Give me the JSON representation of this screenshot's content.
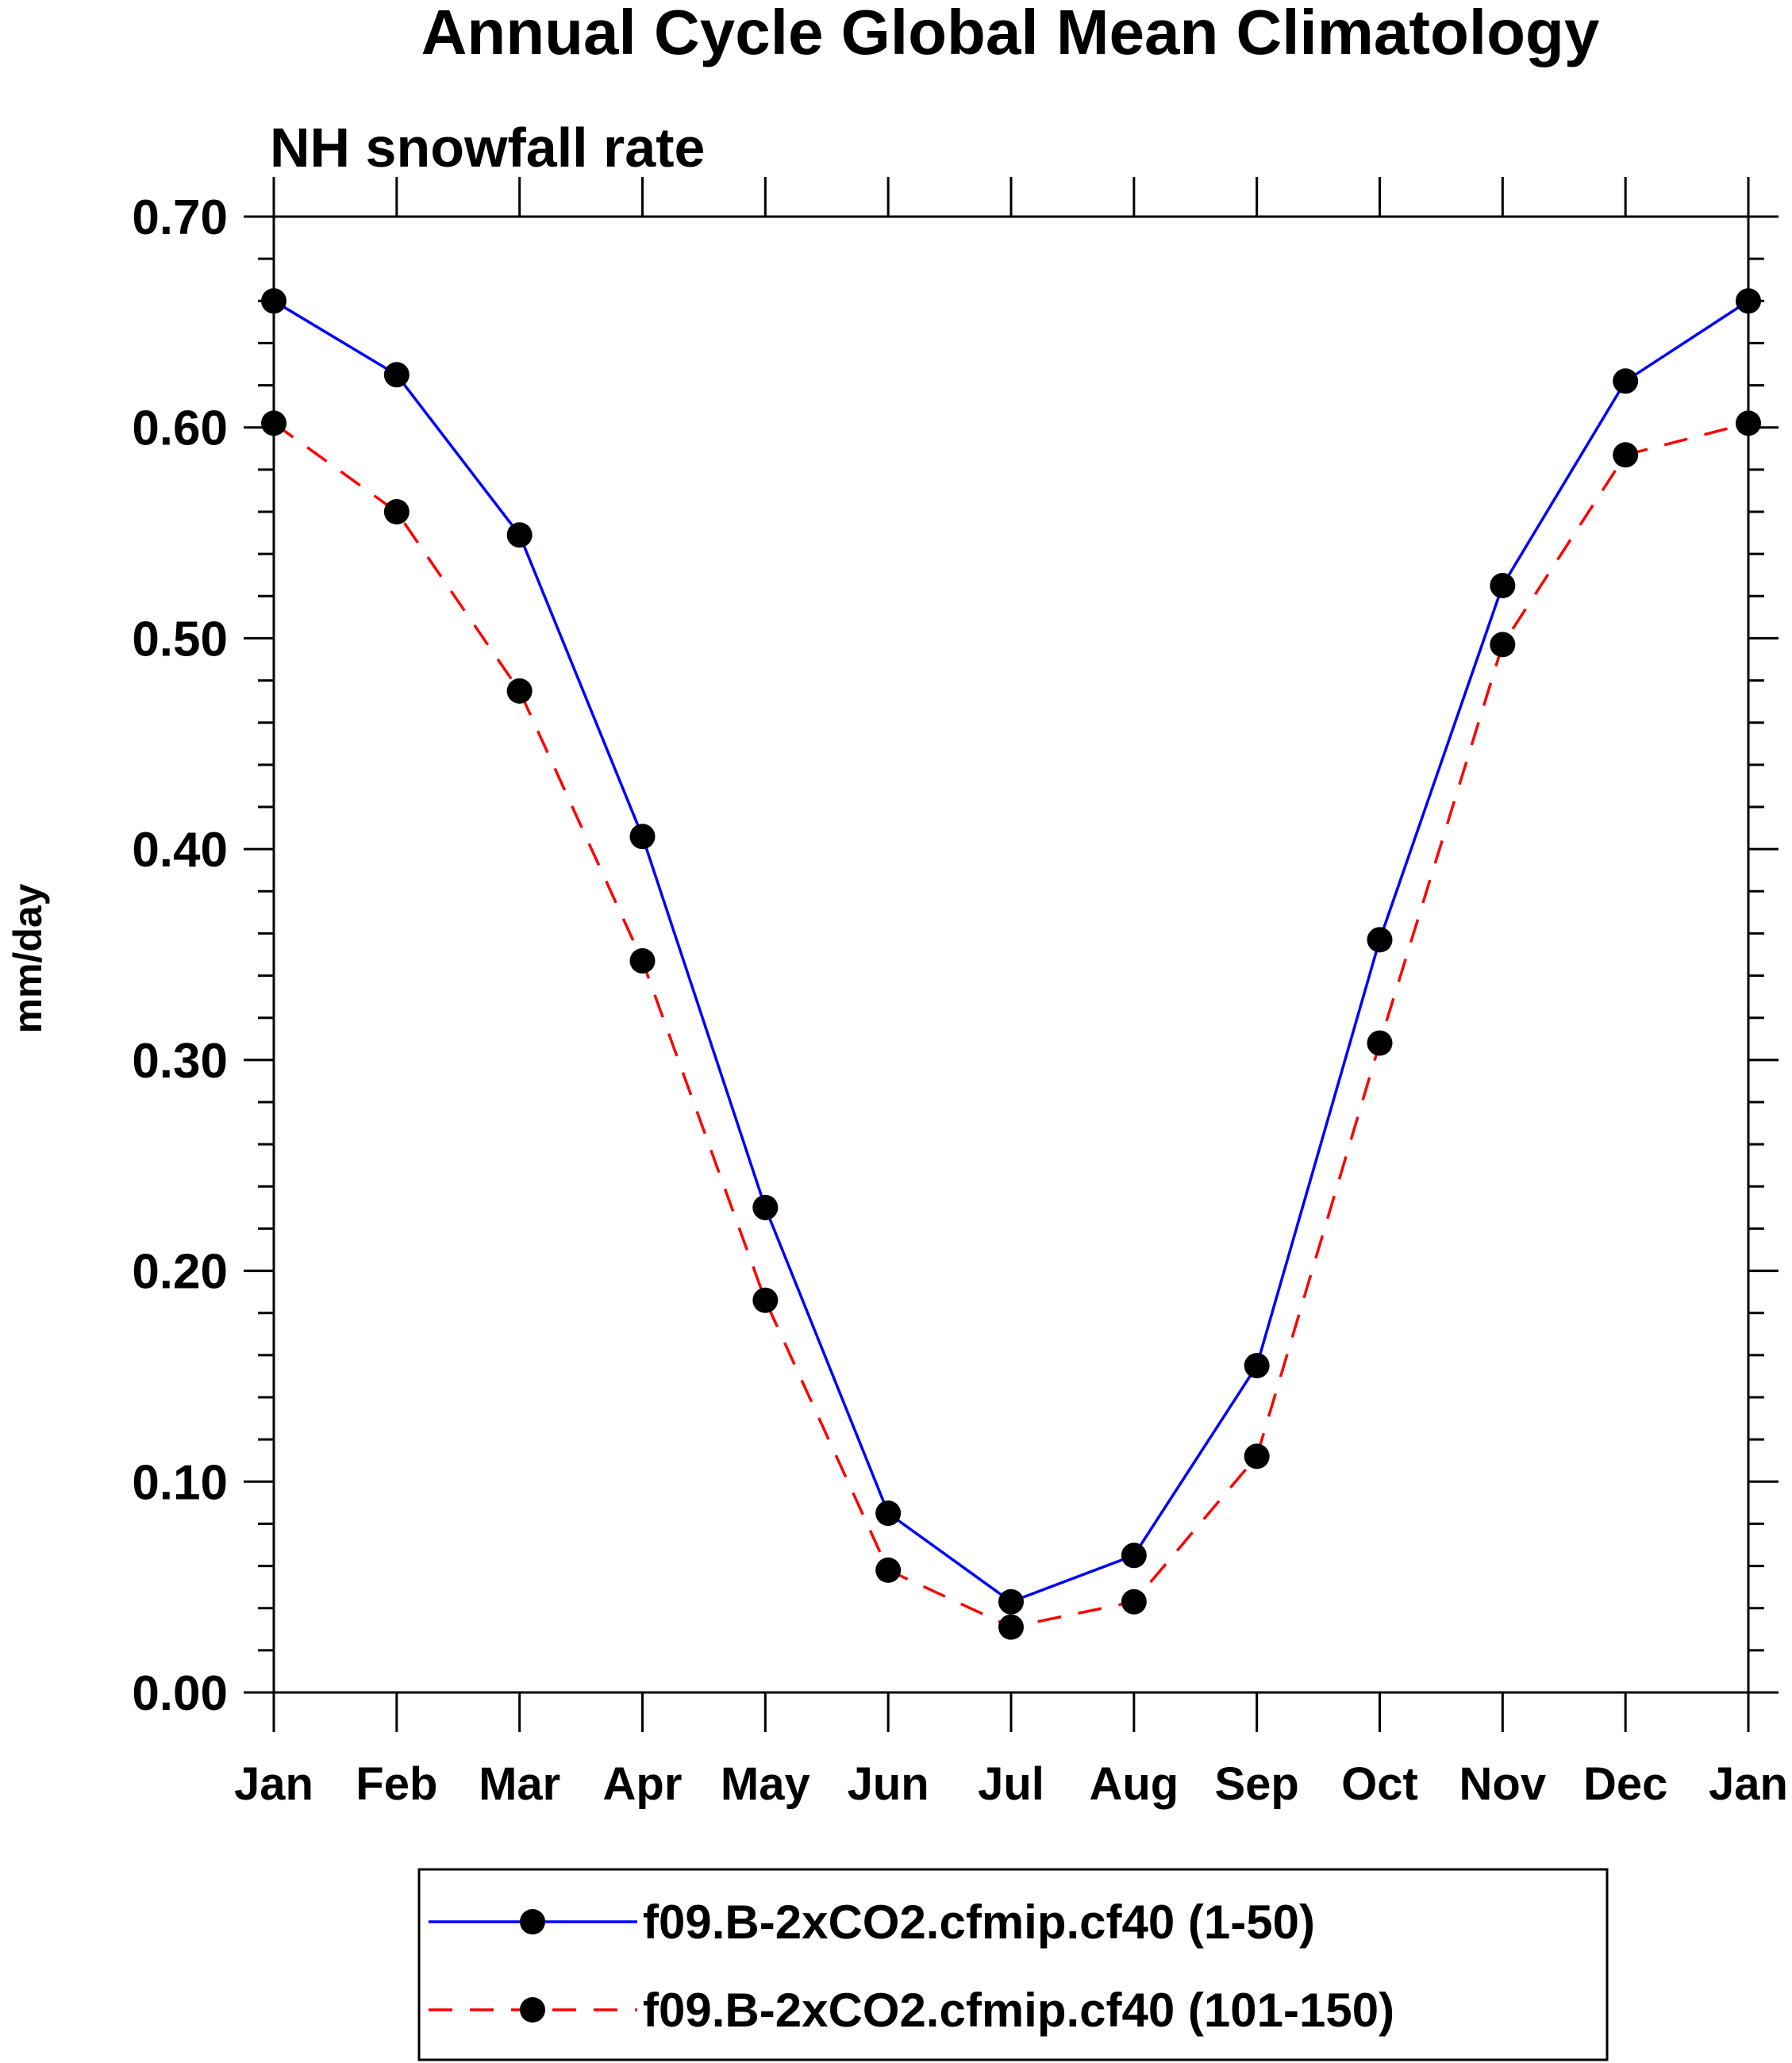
{
  "chart_data": {
    "type": "line",
    "title": "Annual Cycle Global Mean Climatology",
    "subtitle": "NH snowfall rate",
    "xlabel": "",
    "ylabel": "mm/day",
    "categories": [
      "Jan",
      "Feb",
      "Mar",
      "Apr",
      "May",
      "Jun",
      "Jul",
      "Aug",
      "Sep",
      "Oct",
      "Nov",
      "Dec",
      "Jan"
    ],
    "ylim": [
      0,
      0.7
    ],
    "yticks": [
      "0.00",
      "0.10",
      "0.20",
      "0.30",
      "0.40",
      "0.50",
      "0.60",
      "0.70"
    ],
    "grid": false,
    "legend_position": "bottom",
    "series": [
      {
        "name": "f09.B-2xCO2.cfmip.cf40 (1-50)",
        "color": "#0000ff",
        "line_style": "solid",
        "marker": "filled-circle",
        "values": [
          0.66,
          0.625,
          0.549,
          0.406,
          0.23,
          0.085,
          0.043,
          0.065,
          0.155,
          0.357,
          0.525,
          0.622,
          0.66
        ]
      },
      {
        "name": "f09.B-2xCO2.cfmip.cf40 (101-150)",
        "color": "#ff0000",
        "line_style": "dashed",
        "marker": "filled-circle",
        "values": [
          0.602,
          0.56,
          0.475,
          0.347,
          0.186,
          0.058,
          0.031,
          0.043,
          0.112,
          0.308,
          0.497,
          0.587,
          0.602
        ]
      }
    ]
  }
}
